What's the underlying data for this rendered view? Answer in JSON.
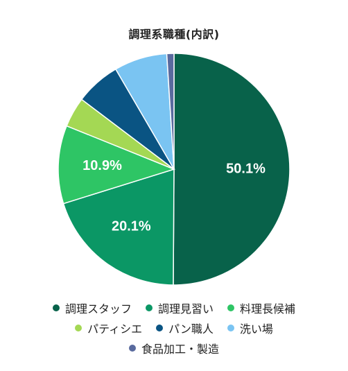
{
  "chart_data": {
    "type": "pie",
    "title": "調理系職種(内訳)",
    "categories": [
      "調理スタッフ",
      "調理見習い",
      "料理長候補",
      "パティシエ",
      "パン職人",
      "洗い場",
      "食品加工・製造"
    ],
    "values": [
      50.1,
      20.1,
      10.9,
      4.2,
      6.3,
      7.4,
      1.0
    ],
    "colors": [
      "#08624a",
      "#0b9765",
      "#2ec565",
      "#a4d854",
      "#0a5483",
      "#7ac4f2",
      "#596a9e"
    ],
    "data_labels": [
      "50.1%",
      "20.1%",
      "10.9%",
      "",
      "",
      "",
      ""
    ],
    "legend_position": "bottom"
  }
}
